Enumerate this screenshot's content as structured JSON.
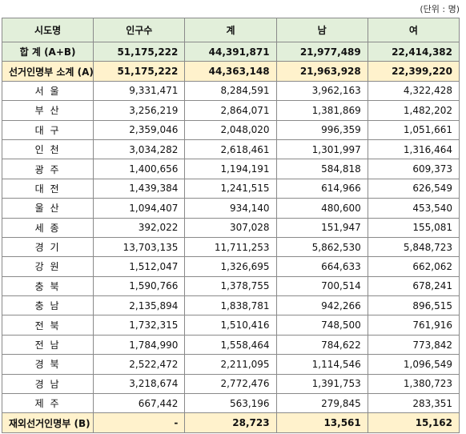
{
  "unit": "(단위 : 명)",
  "table": {
    "header": [
      "시도명",
      "인구수",
      "계",
      "남",
      "여"
    ],
    "rows": [
      [
        "합 계 (A+B)",
        "51,175,222",
        "44,391,871",
        "21,977,489",
        "22,414,382"
      ],
      [
        "선거인명부 소계 (A)",
        "51,175,222",
        "44,363,148",
        "21,963,928",
        "22,399,220"
      ],
      [
        "서 울",
        "9,331,471",
        "8,284,591",
        "3,962,163",
        "4,322,428"
      ],
      [
        "부 산",
        "3,256,219",
        "2,864,071",
        "1,381,869",
        "1,482,202"
      ],
      [
        "대 구",
        "2,359,046",
        "2,048,020",
        "996,359",
        "1,051,661"
      ],
      [
        "인 천",
        "3,034,282",
        "2,618,461",
        "1,301,997",
        "1,316,464"
      ],
      [
        "광 주",
        "1,400,656",
        "1,194,191",
        "584,818",
        "609,373"
      ],
      [
        "대 전",
        "1,439,384",
        "1,241,515",
        "614,966",
        "626,549"
      ],
      [
        "울 산",
        "1,094,407",
        "934,140",
        "480,600",
        "453,540"
      ],
      [
        "세 종",
        "392,022",
        "307,028",
        "151,947",
        "155,081"
      ],
      [
        "경 기",
        "13,703,135",
        "11,711,253",
        "5,862,530",
        "5,848,723"
      ],
      [
        "강 원",
        "1,512,047",
        "1,326,695",
        "664,633",
        "662,062"
      ],
      [
        "충 북",
        "1,590,766",
        "1,378,755",
        "700,514",
        "678,241"
      ],
      [
        "충 남",
        "2,135,894",
        "1,838,781",
        "942,266",
        "896,515"
      ],
      [
        "전 북",
        "1,732,315",
        "1,510,416",
        "748,500",
        "761,916"
      ],
      [
        "전 남",
        "1,784,990",
        "1,558,464",
        "784,622",
        "773,842"
      ],
      [
        "경 북",
        "2,522,472",
        "2,211,095",
        "1,114,546",
        "1,096,549"
      ],
      [
        "경 남",
        "3,218,674",
        "2,772,476",
        "1,391,753",
        "1,380,723"
      ],
      [
        "제 주",
        "667,442",
        "563,196",
        "279,845",
        "283,351"
      ],
      [
        "재외선거인명부 (B)",
        "-",
        "28,723",
        "13,561",
        "15,162"
      ]
    ]
  }
}
